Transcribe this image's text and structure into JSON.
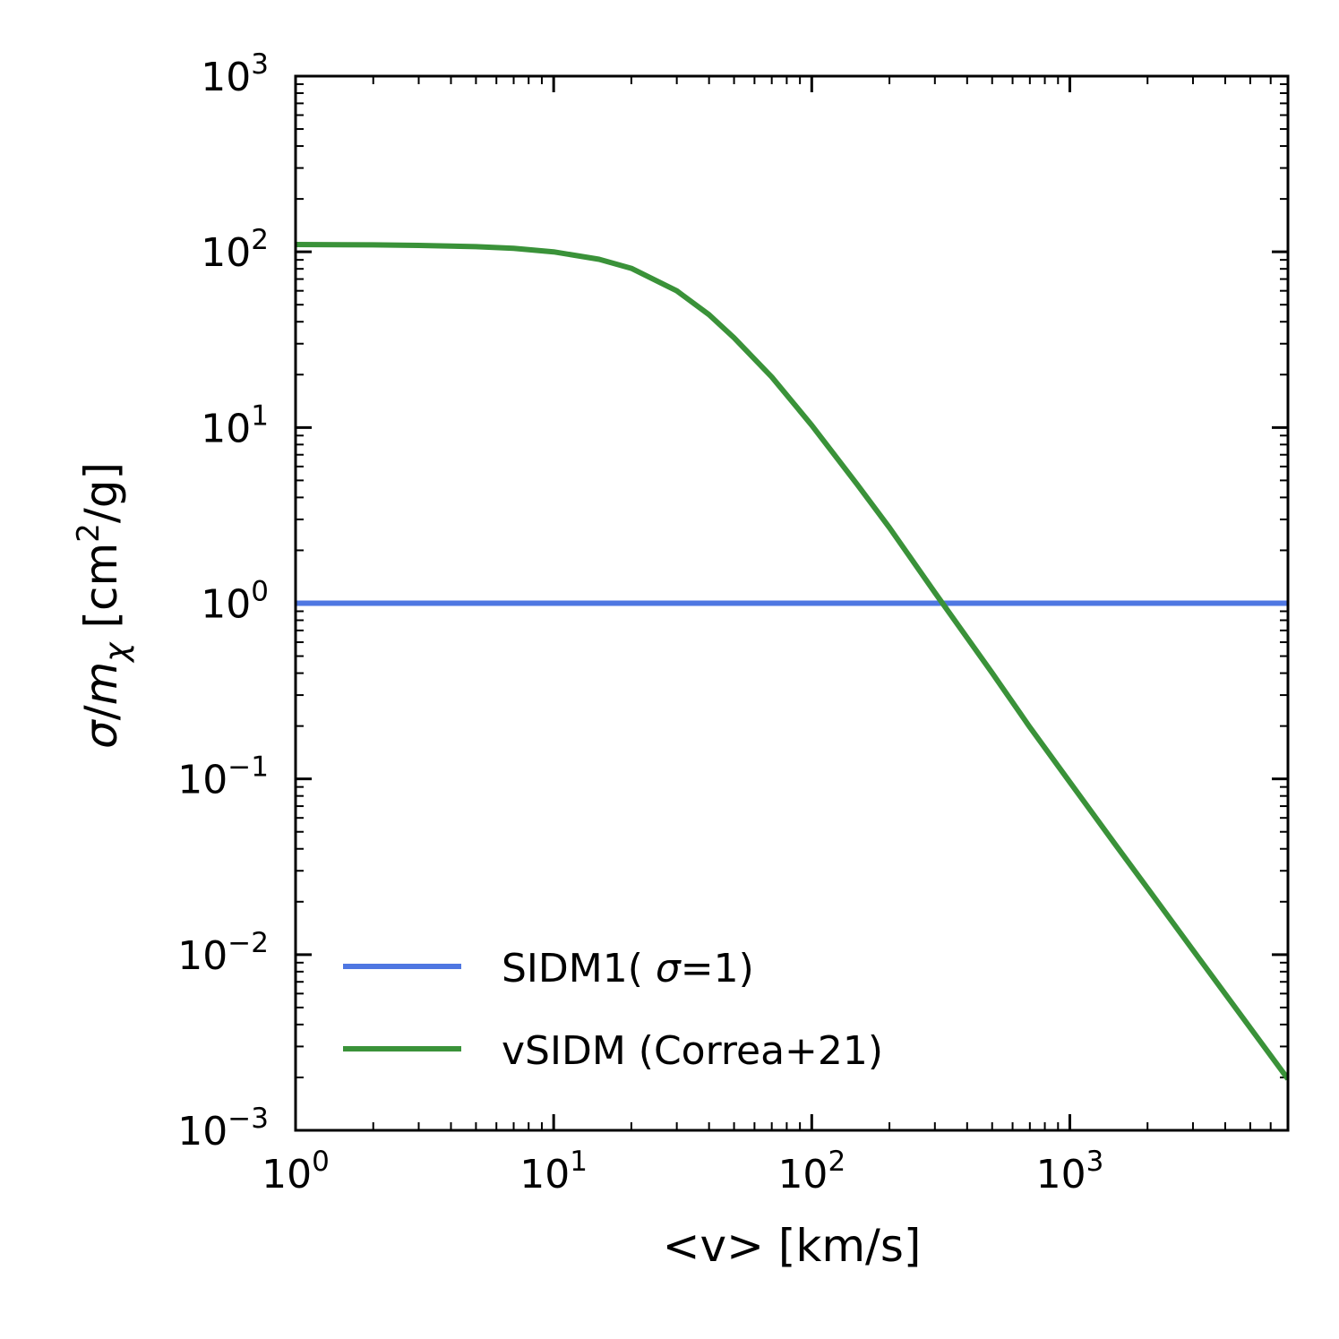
{
  "chart_data": {
    "type": "line",
    "title": "",
    "xlabel": "<v> [km/s]",
    "ylabel": {
      "sigma": "σ",
      "slash": "/",
      "m": "m",
      "chi": "χ",
      "units_open": " [cm",
      "units_sup": "2",
      "units_close": "/g]"
    },
    "xscale": "log",
    "yscale": "log",
    "xlim": [
      1,
      7000
    ],
    "ylim": [
      0.001,
      1000
    ],
    "x_ticks": [
      {
        "value": 1,
        "base": "10",
        "exp": "0"
      },
      {
        "value": 10,
        "base": "10",
        "exp": "1"
      },
      {
        "value": 100,
        "base": "10",
        "exp": "2"
      },
      {
        "value": 1000,
        "base": "10",
        "exp": "3"
      }
    ],
    "y_ticks": [
      {
        "value": 0.001,
        "base": "10",
        "exp": "−3"
      },
      {
        "value": 0.01,
        "base": "10",
        "exp": "−2"
      },
      {
        "value": 0.1,
        "base": "10",
        "exp": "−1"
      },
      {
        "value": 1,
        "base": "10",
        "exp": "0"
      },
      {
        "value": 10,
        "base": "10",
        "exp": "1"
      },
      {
        "value": 100,
        "base": "10",
        "exp": "2"
      },
      {
        "value": 1000,
        "base": "10",
        "exp": "3"
      }
    ],
    "legend_position": "lower-left",
    "series": [
      {
        "name": "SIDM1(σ=1)",
        "label_parts": {
          "prefix": "SIDM1( ",
          "symbol": "σ",
          "suffix": "=1)"
        },
        "color": "#4f77e2",
        "x": [
          1,
          7000
        ],
        "y": [
          1,
          1
        ]
      },
      {
        "name": "vSIDM (Correa+21)",
        "label_parts": {
          "prefix": "vSIDM (Correa+21)",
          "symbol": "",
          "suffix": ""
        },
        "color": "#3a9239",
        "x": [
          1,
          2,
          3,
          5,
          7,
          10,
          15,
          20,
          30,
          40,
          50,
          70,
          100,
          150,
          200,
          300,
          500,
          700,
          1000,
          1500,
          2000,
          3000,
          5000,
          7000
        ],
        "y": [
          110,
          109.5,
          108.8,
          107,
          104.7,
          100,
          90.7,
          80.5,
          60,
          43.9,
          32.4,
          19.4,
          10.3,
          4.74,
          2.69,
          1.15,
          0.401,
          0.197,
          0.0958,
          0.0424,
          0.0239,
          0.0106,
          0.00383,
          0.00196
        ]
      }
    ]
  }
}
